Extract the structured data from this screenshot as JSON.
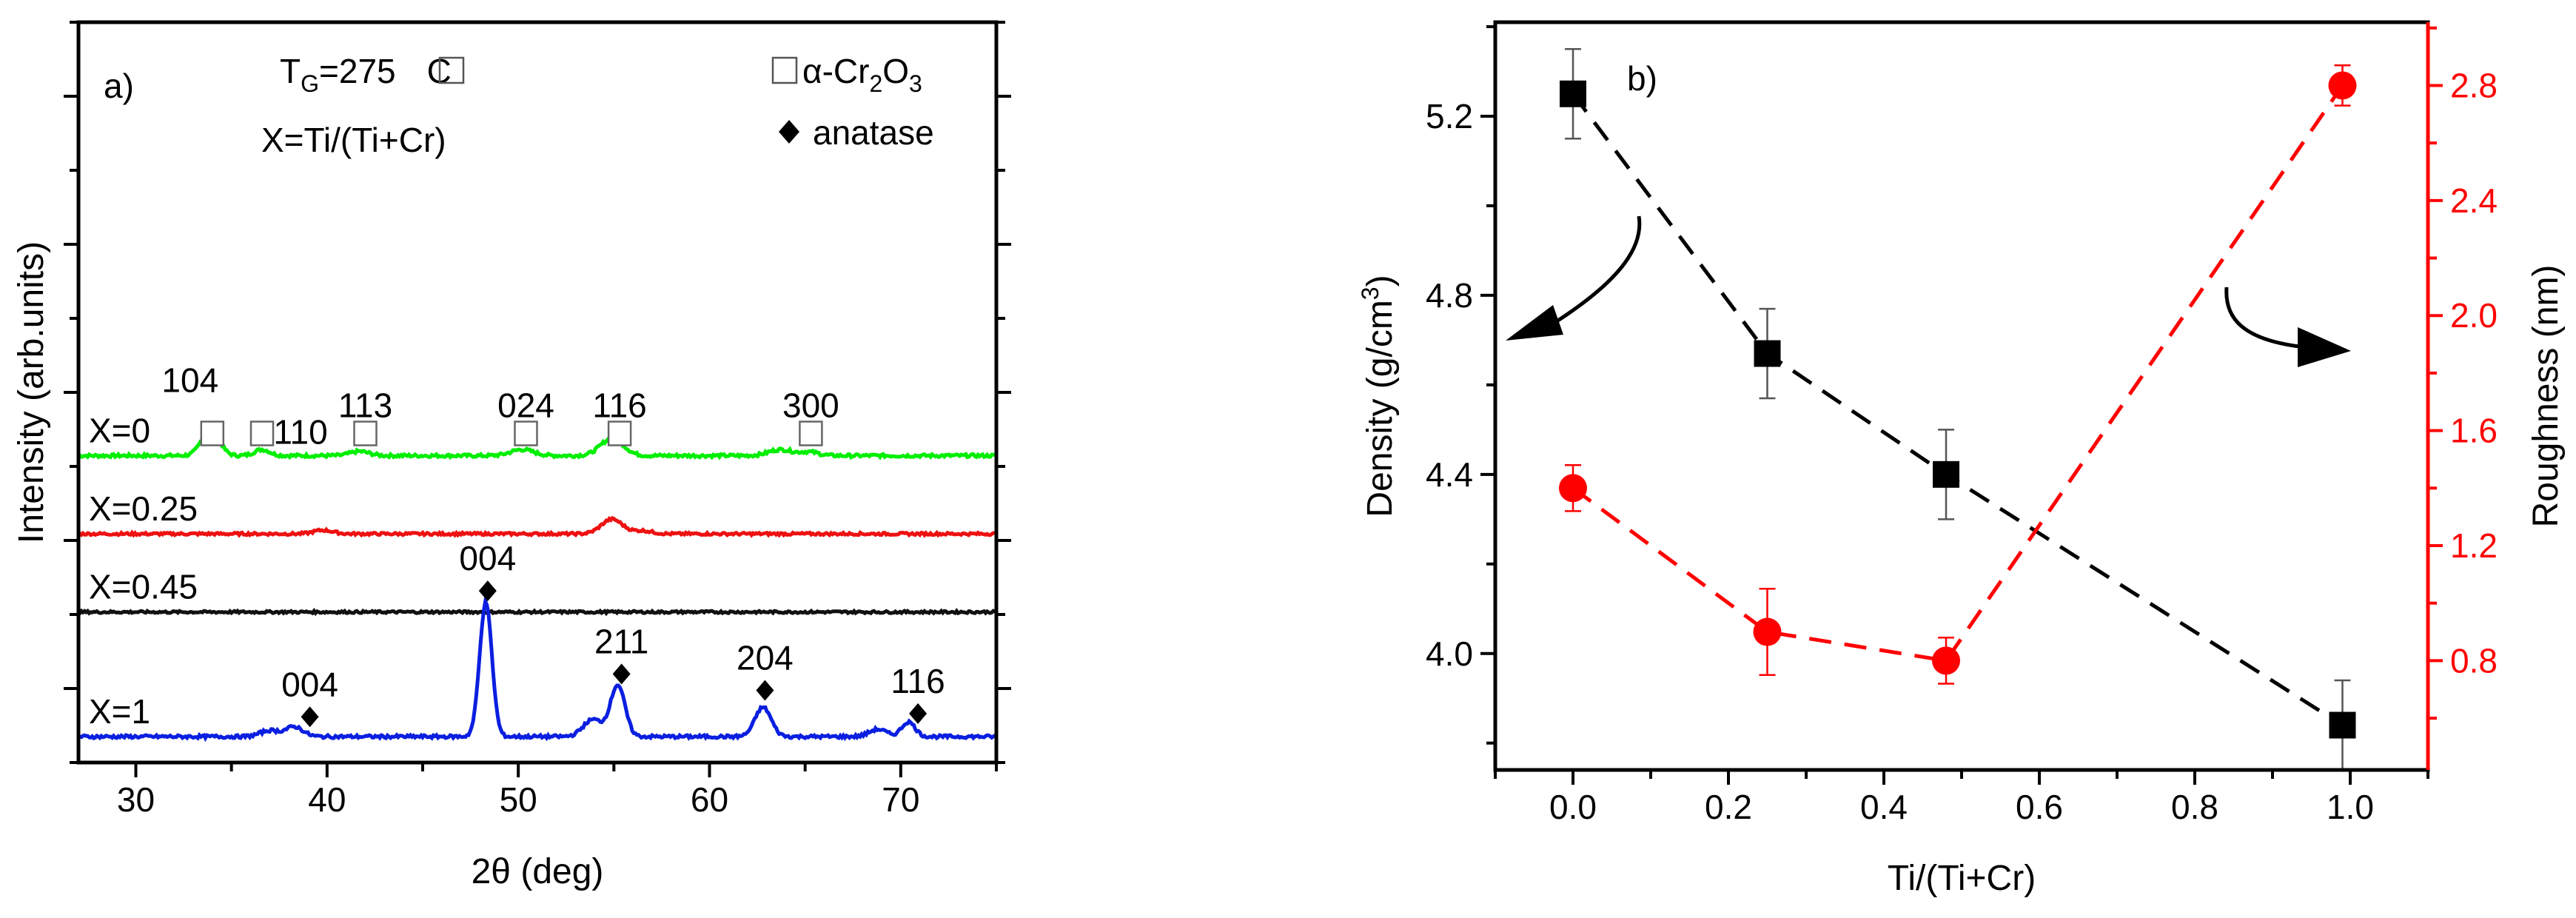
{
  "chart_data": [
    {
      "panel": "a)",
      "type": "line",
      "title": "",
      "xlabel": "2θ (deg)",
      "ylabel": "Intensity (arb.units)",
      "xlim": [
        27,
        75
      ],
      "xticks": [
        30,
        40,
        50,
        60,
        70
      ],
      "tg_label": "T",
      "tg_sub": "G",
      "tg_value": "=275",
      "tg_unit": "C",
      "x_def": "X=Ti/(Ti+Cr)",
      "legend": {
        "cr2o3_pre": "α-Cr",
        "cr2o3_sub1": "2",
        "cr2o3_mid": "O",
        "cr2o3_sub2": "3",
        "anatase": "anatase"
      },
      "series": [
        {
          "name": "X=0",
          "color": "#00ee00",
          "base": 2.3,
          "noise": 0.025,
          "peaks": [
            [
              33.9,
              0.22,
              0.45
            ],
            [
              36.6,
              0.05,
              0.4
            ],
            [
              41.7,
              0.035,
              0.5
            ],
            [
              50.2,
              0.05,
              0.6
            ],
            [
              54.9,
              0.14,
              0.6
            ],
            [
              63.7,
              0.05,
              0.6
            ],
            [
              65.2,
              0.03,
              0.5
            ]
          ]
        },
        {
          "name": "X=0.25",
          "color": "#ee1111",
          "base": 1.66,
          "noise": 0.02,
          "peaks": [
            [
              39.8,
              0.03,
              0.5
            ],
            [
              54.9,
              0.12,
              0.55
            ],
            [
              56.5,
              0.025,
              0.5
            ]
          ]
        },
        {
          "name": "X=0.45",
          "color": "#111111",
          "base": 1.02,
          "noise": 0.018,
          "peaks": []
        },
        {
          "name": "X=1",
          "color": "#0a1fe0",
          "base": 0.0,
          "noise": 0.025,
          "peaks": [
            [
              37.0,
              0.05,
              0.5
            ],
            [
              38.3,
              0.08,
              0.45
            ],
            [
              48.3,
              1.1,
              0.32
            ],
            [
              53.9,
              0.14,
              0.5
            ],
            [
              55.2,
              0.42,
              0.38
            ],
            [
              62.8,
              0.24,
              0.42
            ],
            [
              68.8,
              0.06,
              0.45
            ],
            [
              70.4,
              0.12,
              0.35
            ]
          ]
        }
      ],
      "cr2o3_peaks": [
        {
          "label": "104",
          "x": 34.0
        },
        {
          "label": "110",
          "x": 36.6
        },
        {
          "label": "113",
          "x": 42.0
        },
        {
          "label": "024",
          "x": 50.4
        },
        {
          "label": "116",
          "x": 55.3
        },
        {
          "label": "300",
          "x": 65.3
        }
      ],
      "anatase_peaks": [
        {
          "label": "004",
          "x": 39.1
        },
        {
          "label": "004",
          "x": 48.4
        },
        {
          "label": "211",
          "x": 55.4
        },
        {
          "label": "204",
          "x": 62.9
        },
        {
          "label": "116",
          "x": 70.9
        }
      ]
    },
    {
      "panel": "b)",
      "type": "scatter",
      "xlabel": "Ti/(Ti+Cr)",
      "ylabel_left": "Density (g/cm",
      "ylabel_left_sup": "3",
      "ylabel_left_end": ")",
      "ylabel_right": "Roughness (nm)",
      "xlim": [
        -0.1,
        1.1
      ],
      "xticks": [
        "0.0",
        "0.2",
        "0.4",
        "0.6",
        "0.8",
        "1.0"
      ],
      "ylim_left": [
        3.74,
        5.41
      ],
      "yticks_left": [
        "4.0",
        "4.4",
        "4.8",
        "5.2"
      ],
      "ylim_right": [
        0.42,
        3.02
      ],
      "yticks_right": [
        "0.8",
        "1.2",
        "1.6",
        "2.0",
        "2.4",
        "2.8"
      ],
      "series": [
        {
          "name": "Density",
          "axis": "left",
          "color": "#000000",
          "marker": "square",
          "x": [
            0.0,
            0.25,
            0.48,
            0.99
          ],
          "y": [
            5.25,
            4.67,
            4.4,
            3.84
          ],
          "err": [
            0.1,
            0.1,
            0.1,
            0.1
          ]
        },
        {
          "name": "Roughness",
          "axis": "right",
          "color": "#ff0000",
          "marker": "circle",
          "x": [
            0.0,
            0.25,
            0.48,
            0.99
          ],
          "y": [
            1.4,
            0.9,
            0.8,
            2.8
          ],
          "err": [
            0.08,
            0.15,
            0.08,
            0.07
          ]
        }
      ]
    }
  ]
}
